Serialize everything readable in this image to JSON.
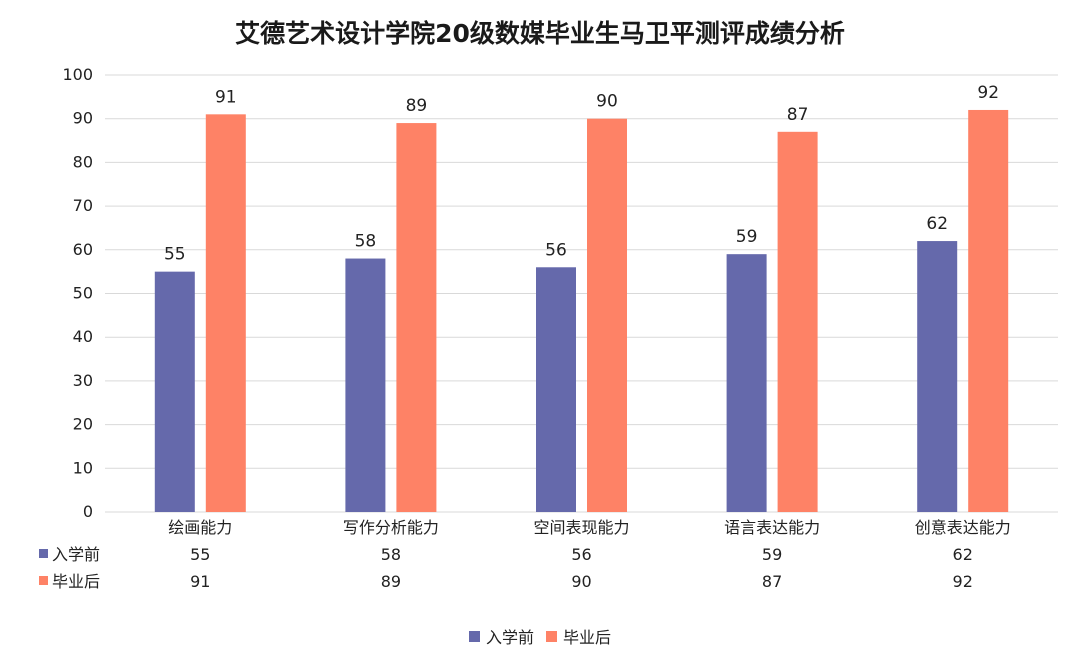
{
  "title": "艾德艺术设计学院20级数媒毕业生马卫平测评成绩分析",
  "chart_data": {
    "type": "bar",
    "title": "艾德艺术设计学院20级数媒毕业生马卫平测评成绩分析",
    "categories": [
      "绘画能力",
      "写作分析能力",
      "空间表现能力",
      "语言表达能力",
      "创意表达能力"
    ],
    "series": [
      {
        "name": "入学前",
        "values": [
          55,
          58,
          56,
          59,
          62
        ],
        "color": "#6569ab"
      },
      {
        "name": "毕业后",
        "values": [
          91,
          89,
          90,
          87,
          92
        ],
        "color": "#fe8266"
      }
    ],
    "ylim": [
      0,
      100
    ],
    "ytick_step": 10,
    "grid": true,
    "data_table": true,
    "legend": "bottom"
  }
}
